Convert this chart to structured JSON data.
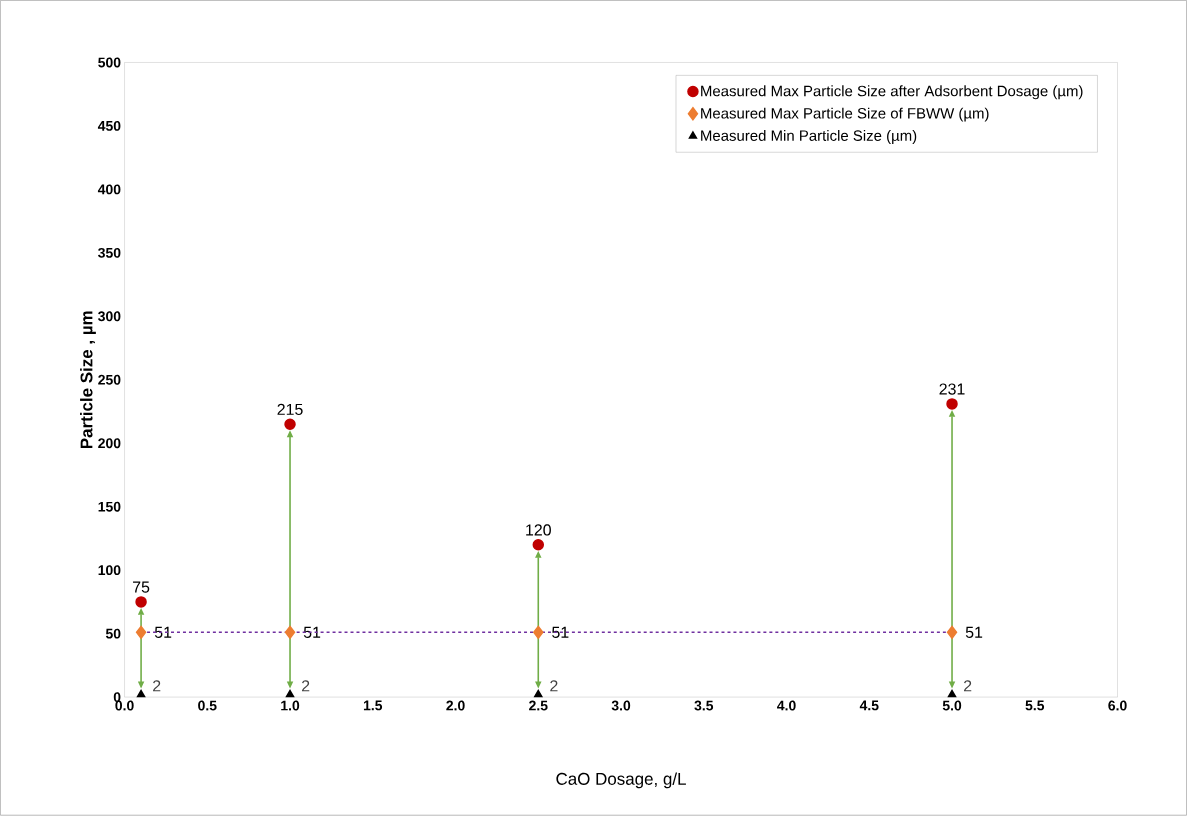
{
  "chart_data": {
    "type": "scatter",
    "xlabel": "CaO Dosage, g/L",
    "ylabel": "Particle Size , µm",
    "series": [
      {
        "name": "Measured Max Particle Size after Adsorbent Dosage (µm)",
        "color": "#c00000",
        "marker": "circle",
        "x": [
          0.1,
          1.0,
          2.5,
          5.0
        ],
        "values": [
          75,
          215,
          120,
          231
        ],
        "value_labels": [
          "75",
          "215",
          "120",
          "231"
        ]
      },
      {
        "name": "Measured Max Particle Size of FBWW (µm)",
        "color": "#ed7d31",
        "marker": "diamond",
        "x": [
          0.1,
          1.0,
          2.5,
          5.0
        ],
        "values": [
          51,
          51,
          51,
          51
        ],
        "value_labels": [
          "51",
          "51",
          "51",
          "51"
        ]
      },
      {
        "name": "Measured Min Particle Size (µm)",
        "color": "#000000",
        "marker": "triangle",
        "x": [
          0.1,
          1.0,
          2.5,
          5.0
        ],
        "values": [
          2,
          2,
          2,
          2
        ],
        "value_labels": [
          "2",
          "2",
          "2",
          "2"
        ]
      },
      {
        "type": "line",
        "color": "#7030a0",
        "line_style": "dashed",
        "marker": "none",
        "x": [
          0.1,
          5.0
        ],
        "values": [
          51,
          51
        ]
      }
    ],
    "xlim": [
      0,
      6
    ],
    "ylim": [
      0,
      500
    ],
    "xticks": [
      {
        "value": 0,
        "label": "0.0"
      },
      0.5,
      {
        "value": 1,
        "label": "1.0"
      },
      1.5,
      {
        "value": 2,
        "label": "2.0"
      },
      2.5,
      {
        "value": 3,
        "label": "3.0"
      },
      3.5,
      {
        "value": 4,
        "label": "4.0"
      },
      4.5,
      {
        "value": 5,
        "label": "5.0"
      },
      5.5,
      {
        "value": 6,
        "label": "6.0"
      }
    ],
    "yticks": [
      0,
      50,
      100,
      150,
      200,
      250,
      300,
      350,
      400,
      450,
      500
    ],
    "grid": false,
    "legend": "top right"
  }
}
